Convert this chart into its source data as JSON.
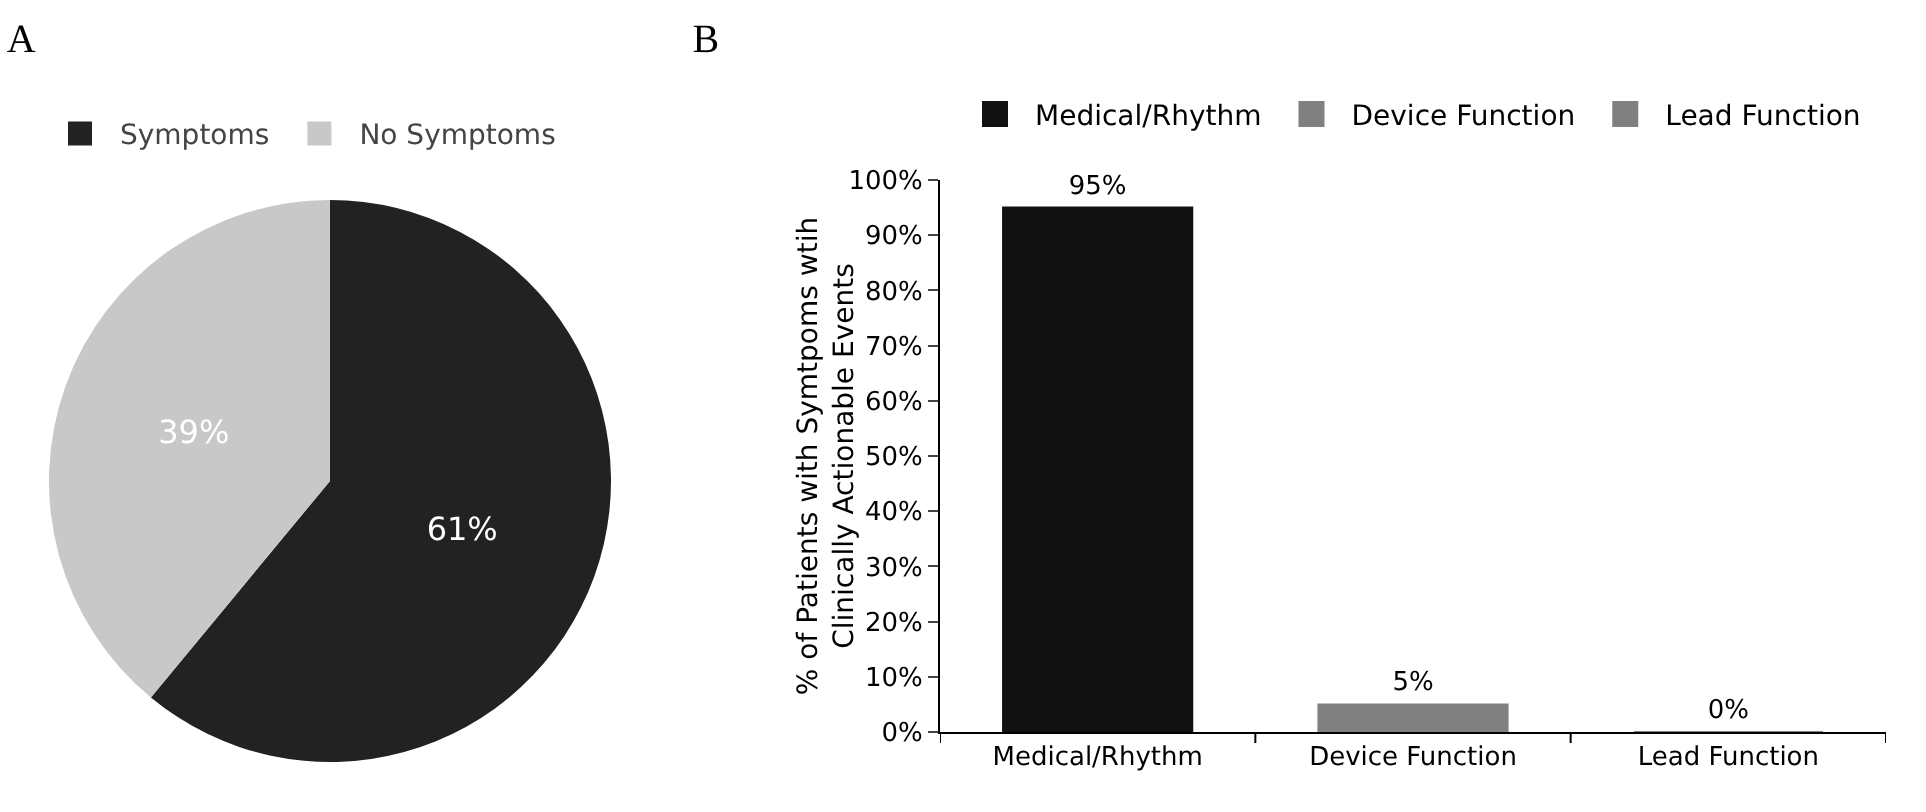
{
  "chart_data": [
    {
      "type": "pie",
      "title": "A",
      "categories": [
        "Symptoms",
        "No Symptoms"
      ],
      "values": [
        61,
        39
      ],
      "colors": [
        "#222222",
        "#c8c8c8"
      ],
      "value_labels": [
        "61%",
        "39%"
      ],
      "legend": "top left"
    },
    {
      "type": "bar",
      "title": "B",
      "ylabel": "% of Patients with Symtpoms wtih Clinically Actionable Events",
      "categories": [
        "Medical/Rhythm",
        "Device Function",
        "Lead Function"
      ],
      "series": [
        {
          "name": "Medical/Rhythm",
          "color": "#111111",
          "values": [
            95,
            null,
            null
          ],
          "value_labels": [
            "95%",
            null,
            null
          ]
        },
        {
          "name": "Device Function",
          "color": "#808080",
          "values": [
            null,
            5,
            null
          ],
          "value_labels": [
            null,
            "5%",
            null
          ]
        },
        {
          "name": "Lead Function",
          "color": "#808080",
          "values": [
            null,
            null,
            0
          ],
          "value_labels": [
            null,
            null,
            "0%"
          ]
        }
      ],
      "legend": "top",
      "ylim": [
        0,
        100
      ],
      "yticks": [
        {
          "value": 0,
          "label": "0%"
        },
        {
          "value": 10,
          "label": "10%"
        },
        {
          "value": 20,
          "label": "20%"
        },
        {
          "value": 30,
          "label": "30%"
        },
        {
          "value": 40,
          "label": "40%"
        },
        {
          "value": 50,
          "label": "50%"
        },
        {
          "value": 60,
          "label": "60%"
        },
        {
          "value": 70,
          "label": "70%"
        },
        {
          "value": 80,
          "label": "80%"
        },
        {
          "value": 90,
          "label": "90%"
        },
        {
          "value": 100,
          "label": "100%"
        }
      ],
      "grid": false
    }
  ]
}
